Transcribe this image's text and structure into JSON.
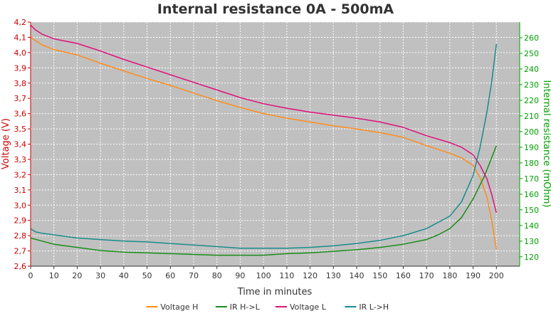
{
  "chart_data": {
    "type": "line",
    "title": "Internal resistance  0A - 500mA",
    "xlabel": "Time in minutes",
    "ylabel_left": "Voltage (V)",
    "ylabel_right": "Internal resistance (mOhm)",
    "xlim": [
      0,
      210
    ],
    "ylim_left": [
      2.6,
      4.2
    ],
    "ylim_right": [
      114,
      270
    ],
    "x_ticks": [
      0,
      10,
      20,
      30,
      40,
      50,
      60,
      70,
      80,
      90,
      100,
      110,
      120,
      130,
      140,
      150,
      160,
      170,
      180,
      190,
      200
    ],
    "y_left_ticks": [
      "2,6",
      "2,7",
      "2,8",
      "2,9",
      "3,0",
      "3,1",
      "3,2",
      "3,3",
      "3,4",
      "3,5",
      "3,6",
      "3,7",
      "3,8",
      "3,9",
      "4,0",
      "4,1",
      "4,2"
    ],
    "y_left_tick_values": [
      2.6,
      2.7,
      2.8,
      2.9,
      3.0,
      3.1,
      3.2,
      3.3,
      3.4,
      3.5,
      3.6,
      3.7,
      3.8,
      3.9,
      4.0,
      4.1,
      4.2
    ],
    "y_right_ticks": [
      120,
      130,
      140,
      150,
      160,
      170,
      180,
      190,
      200,
      210,
      220,
      230,
      240,
      250,
      260
    ],
    "grid": true,
    "legend_position": "bottom",
    "colors": {
      "background_plot": "#c0c0c0",
      "grid": "#ffffff",
      "left_axis": "#cc0000",
      "right_axis": "#00a000",
      "x_axis": "#333333"
    },
    "series": [
      {
        "name": "Voltage H",
        "axis": "left",
        "color": "#ff8c1a",
        "x": [
          0,
          2,
          5,
          10,
          20,
          30,
          40,
          50,
          60,
          70,
          80,
          90,
          100,
          110,
          120,
          130,
          140,
          150,
          160,
          170,
          180,
          185,
          190,
          193,
          196,
          198,
          200
        ],
        "y": [
          4.1,
          4.08,
          4.05,
          4.02,
          3.985,
          3.93,
          3.88,
          3.83,
          3.785,
          3.735,
          3.685,
          3.64,
          3.6,
          3.57,
          3.545,
          3.52,
          3.5,
          3.475,
          3.445,
          3.39,
          3.34,
          3.31,
          3.26,
          3.18,
          3.05,
          2.9,
          2.71
        ]
      },
      {
        "name": "IR H->L",
        "axis": "right",
        "color": "#1a8c1a",
        "x": [
          0,
          5,
          10,
          20,
          30,
          40,
          50,
          60,
          70,
          80,
          90,
          100,
          110,
          120,
          130,
          140,
          150,
          160,
          170,
          175,
          180,
          185,
          190,
          195,
          200
        ],
        "y": [
          132,
          130,
          128,
          126,
          124,
          123,
          122.5,
          122,
          121.5,
          121,
          121,
          121,
          122,
          122.5,
          123.5,
          124.5,
          126,
          128,
          131,
          134,
          138,
          145,
          157,
          172,
          191
        ]
      },
      {
        "name": "Voltage L",
        "axis": "left",
        "color": "#e0107a",
        "x": [
          0,
          2,
          5,
          10,
          20,
          30,
          40,
          50,
          60,
          70,
          80,
          90,
          100,
          110,
          120,
          130,
          140,
          150,
          160,
          170,
          180,
          185,
          190,
          193,
          196,
          198,
          200
        ],
        "y": [
          4.18,
          4.15,
          4.12,
          4.09,
          4.06,
          4.01,
          3.955,
          3.905,
          3.855,
          3.805,
          3.755,
          3.705,
          3.665,
          3.635,
          3.61,
          3.59,
          3.57,
          3.545,
          3.51,
          3.455,
          3.41,
          3.38,
          3.33,
          3.26,
          3.17,
          3.07,
          2.95
        ]
      },
      {
        "name": "IR L->H",
        "axis": "right",
        "color": "#1a8c8c",
        "x": [
          0,
          2,
          5,
          10,
          20,
          30,
          40,
          50,
          60,
          70,
          80,
          90,
          100,
          110,
          120,
          130,
          140,
          150,
          160,
          170,
          180,
          185,
          190,
          193,
          196,
          198,
          200
        ],
        "y": [
          138,
          136,
          135,
          134,
          132,
          131,
          130,
          129.5,
          128.5,
          127.5,
          126.5,
          125.5,
          125.5,
          125.5,
          126,
          127,
          128.5,
          130.5,
          133.5,
          138,
          146,
          155,
          172,
          190,
          213,
          232,
          256
        ]
      }
    ]
  }
}
